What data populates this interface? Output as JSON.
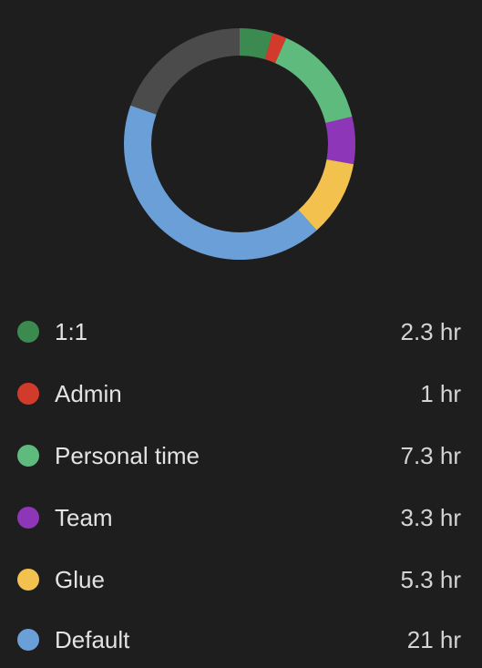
{
  "chart_data": {
    "type": "pie",
    "categories": [
      "1:1",
      "Admin",
      "Personal time",
      "Team",
      "Glue",
      "Default"
    ],
    "values": [
      2.3,
      1,
      7.3,
      3.3,
      5.3,
      21
    ],
    "unit": "hr",
    "remainder_color": "#4a4b4a"
  },
  "legend": {
    "items": [
      {
        "label": "1:1",
        "value": "2.3 hr",
        "color": "#3b8a4f"
      },
      {
        "label": "Admin",
        "value": "1 hr",
        "color": "#d23a2b"
      },
      {
        "label": "Personal time",
        "value": "7.3 hr",
        "color": "#5fba7d"
      },
      {
        "label": "Team",
        "value": "3.3 hr",
        "color": "#8e36b8"
      },
      {
        "label": "Glue",
        "value": "5.3 hr",
        "color": "#f2c14e"
      },
      {
        "label": "Default",
        "value": "21 hr",
        "color": "#6a9fd8"
      }
    ]
  }
}
